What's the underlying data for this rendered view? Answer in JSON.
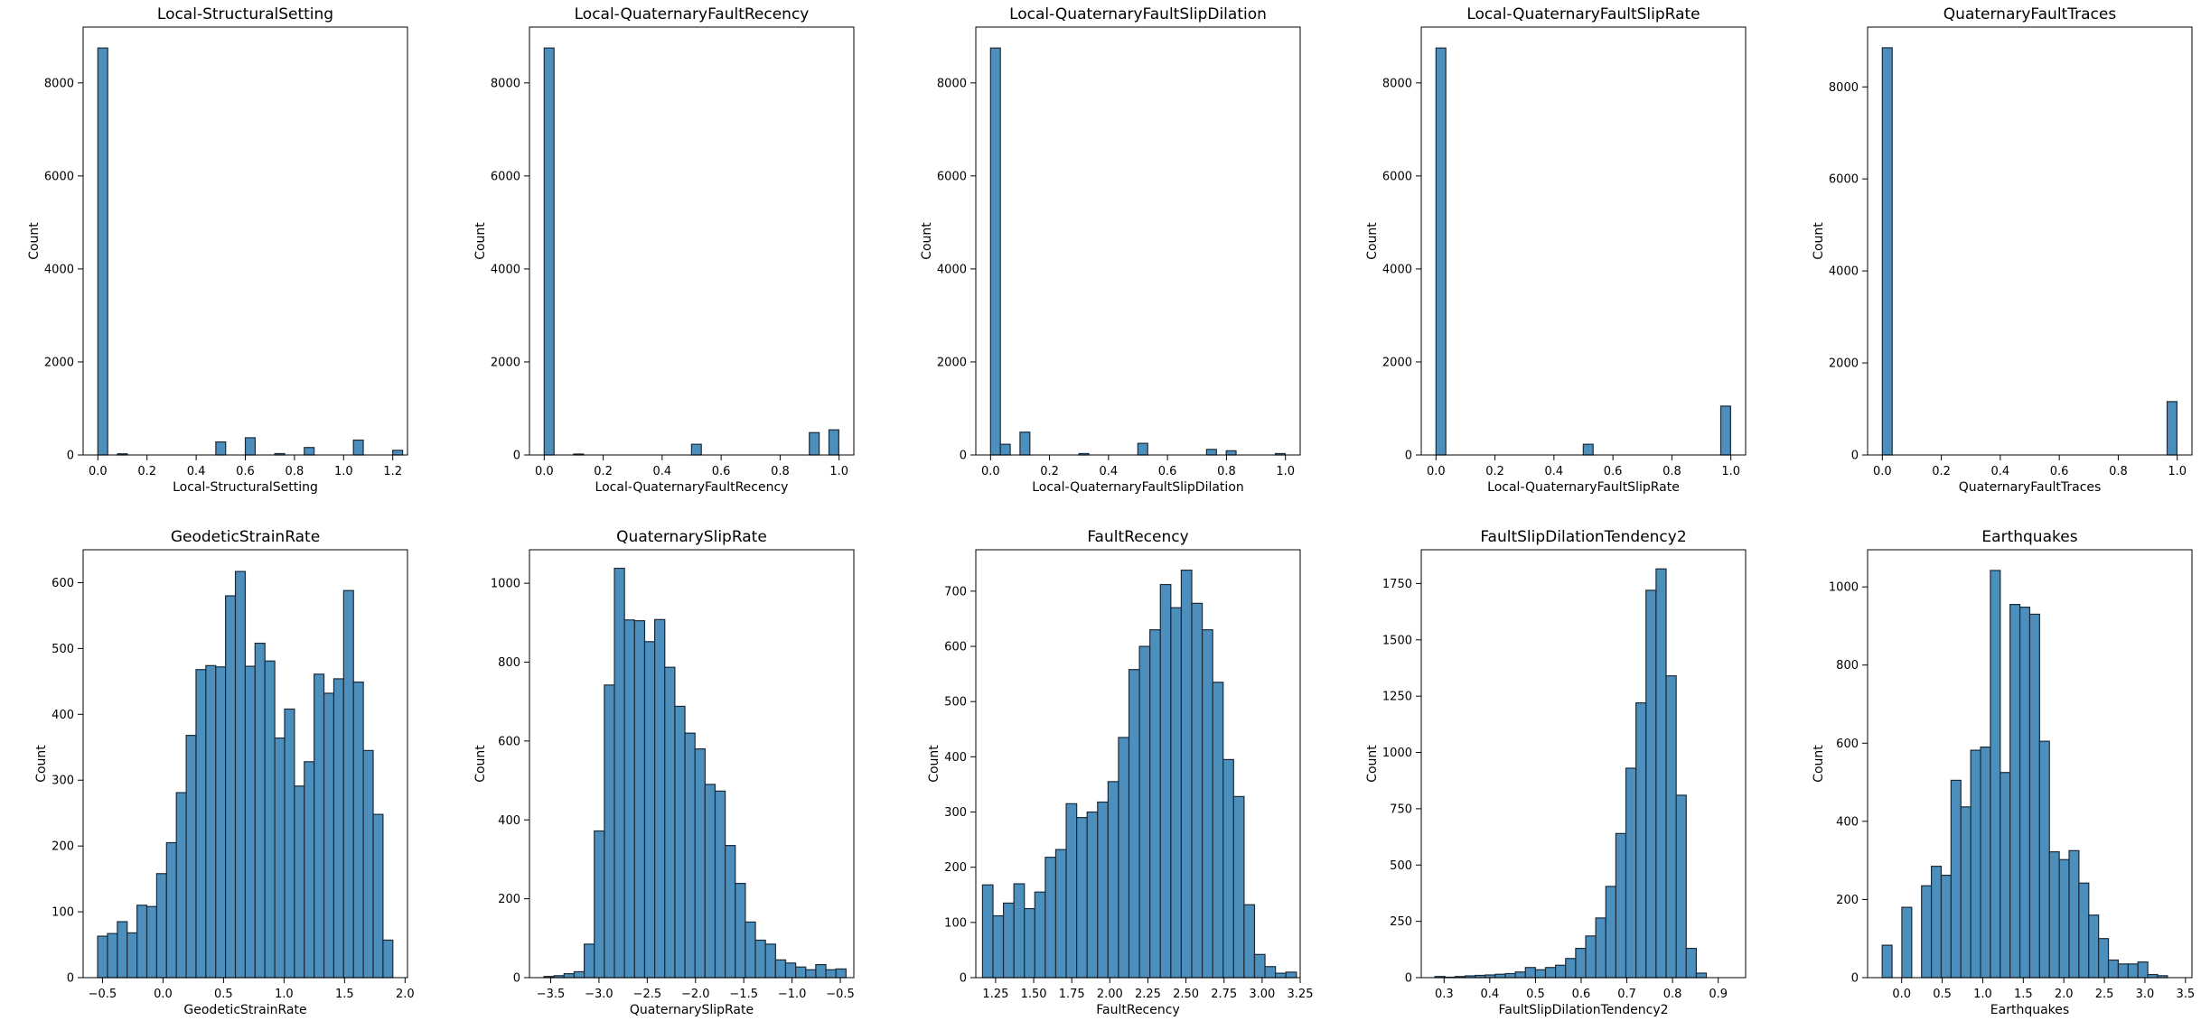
{
  "chart_data": [
    {
      "type": "bar",
      "title": "Local-StructuralSetting",
      "xlabel": "Local-StructuralSetting",
      "ylabel": "Count",
      "xlim": [
        -0.06,
        1.26
      ],
      "ylim": [
        0,
        9200
      ],
      "xticks": [
        0.0,
        0.2,
        0.4,
        0.6,
        0.8,
        1.0,
        1.2
      ],
      "xtick_labels": [
        "0.0",
        "0.2",
        "0.4",
        "0.6",
        "0.8",
        "1.0",
        "1.2"
      ],
      "yticks": [
        0,
        2000,
        4000,
        6000,
        8000
      ],
      "ytick_labels": [
        "0",
        "2000",
        "4000",
        "6000",
        "8000"
      ],
      "bin_start": 0.0,
      "bin_width": 0.04,
      "counts": [
        8750,
        0,
        25,
        0,
        0,
        0,
        0,
        0,
        0,
        0,
        0,
        0,
        280,
        0,
        0,
        370,
        0,
        0,
        30,
        0,
        0,
        160,
        0,
        0,
        0,
        0,
        320,
        0,
        0,
        0,
        100
      ]
    },
    {
      "type": "bar",
      "title": "Local-QuaternaryFaultRecency",
      "xlabel": "Local-QuaternaryFaultRecency",
      "ylabel": "Count",
      "xlim": [
        -0.05,
        1.05
      ],
      "ylim": [
        0,
        9200
      ],
      "xticks": [
        0.0,
        0.2,
        0.4,
        0.6,
        0.8,
        1.0
      ],
      "xtick_labels": [
        "0.0",
        "0.2",
        "0.4",
        "0.6",
        "0.8",
        "1.0"
      ],
      "yticks": [
        0,
        2000,
        4000,
        6000,
        8000
      ],
      "ytick_labels": [
        "0",
        "2000",
        "4000",
        "6000",
        "8000"
      ],
      "bin_start": 0.0,
      "bin_width": 0.0333,
      "counts": [
        8750,
        0,
        0,
        20,
        0,
        0,
        0,
        0,
        0,
        0,
        0,
        0,
        0,
        0,
        0,
        230,
        0,
        0,
        0,
        0,
        0,
        0,
        0,
        0,
        0,
        0,
        0,
        480,
        0,
        540
      ]
    },
    {
      "type": "bar",
      "title": "Local-QuaternaryFaultSlipDilation",
      "xlabel": "Local-QuaternaryFaultSlipDilation",
      "ylabel": "Count",
      "xlim": [
        -0.05,
        1.05
      ],
      "ylim": [
        0,
        9200
      ],
      "xticks": [
        0.0,
        0.2,
        0.4,
        0.6,
        0.8,
        1.0
      ],
      "xtick_labels": [
        "0.0",
        "0.2",
        "0.4",
        "0.6",
        "0.8",
        "1.0"
      ],
      "yticks": [
        0,
        2000,
        4000,
        6000,
        8000
      ],
      "ytick_labels": [
        "0",
        "2000",
        "4000",
        "6000",
        "8000"
      ],
      "bin_start": 0.0,
      "bin_width": 0.0333,
      "counts": [
        8750,
        230,
        0,
        490,
        0,
        0,
        0,
        0,
        0,
        30,
        0,
        0,
        0,
        0,
        0,
        250,
        0,
        0,
        0,
        0,
        0,
        0,
        120,
        0,
        90,
        0,
        0,
        0,
        0,
        30
      ]
    },
    {
      "type": "bar",
      "title": "Local-QuaternaryFaultSlipRate",
      "xlabel": "Local-QuaternaryFaultSlipRate",
      "ylabel": "Count",
      "xlim": [
        -0.05,
        1.05
      ],
      "ylim": [
        0,
        9200
      ],
      "xticks": [
        0.0,
        0.2,
        0.4,
        0.6,
        0.8,
        1.0
      ],
      "xtick_labels": [
        "0.0",
        "0.2",
        "0.4",
        "0.6",
        "0.8",
        "1.0"
      ],
      "yticks": [
        0,
        2000,
        4000,
        6000,
        8000
      ],
      "ytick_labels": [
        "0",
        "2000",
        "4000",
        "6000",
        "8000"
      ],
      "bin_start": 0.0,
      "bin_width": 0.0333,
      "counts": [
        8750,
        0,
        0,
        0,
        0,
        0,
        0,
        0,
        0,
        0,
        0,
        0,
        0,
        0,
        0,
        230,
        0,
        0,
        0,
        0,
        0,
        0,
        0,
        0,
        0,
        0,
        0,
        0,
        0,
        1050
      ]
    },
    {
      "type": "bar",
      "title": "QuaternaryFaultTraces",
      "xlabel": "QuaternaryFaultTraces",
      "ylabel": "Count",
      "xlim": [
        -0.05,
        1.05
      ],
      "ylim": [
        0,
        9300
      ],
      "xticks": [
        0.0,
        0.2,
        0.4,
        0.6,
        0.8,
        1.0
      ],
      "xtick_labels": [
        "0.0",
        "0.2",
        "0.4",
        "0.6",
        "0.8",
        "1.0"
      ],
      "yticks": [
        0,
        2000,
        4000,
        6000,
        8000
      ],
      "ytick_labels": [
        "0",
        "2000",
        "4000",
        "6000",
        "8000"
      ],
      "bin_start": 0.0,
      "bin_width": 0.0333,
      "counts": [
        8850,
        0,
        0,
        0,
        0,
        0,
        0,
        0,
        0,
        0,
        0,
        0,
        0,
        0,
        0,
        0,
        0,
        0,
        0,
        0,
        0,
        0,
        0,
        0,
        0,
        0,
        0,
        0,
        0,
        1160
      ]
    },
    {
      "type": "bar",
      "title": "GeodeticStrainRate",
      "xlabel": "GeodeticStrainRate",
      "ylabel": "Count",
      "xlim": [
        -0.66,
        2.02
      ],
      "ylim": [
        0,
        650
      ],
      "xticks": [
        -0.5,
        0.0,
        0.5,
        1.0,
        1.5,
        2.0
      ],
      "xtick_labels": [
        "−0.5",
        "0.0",
        "0.5",
        "1.0",
        "1.5",
        "2.0"
      ],
      "yticks": [
        0,
        100,
        200,
        300,
        400,
        500,
        600
      ],
      "ytick_labels": [
        "0",
        "100",
        "200",
        "300",
        "400",
        "500",
        "600"
      ],
      "bin_start": -0.54,
      "bin_width": 0.0813,
      "counts": [
        63,
        67,
        85,
        68,
        110,
        108,
        158,
        205,
        281,
        368,
        468,
        474,
        472,
        580,
        617,
        473,
        508,
        481,
        364,
        408,
        291,
        328,
        461,
        432,
        454,
        588,
        449,
        345,
        248,
        57
      ]
    },
    {
      "type": "bar",
      "title": "QuaternarySlipRate",
      "xlabel": "QuaternarySlipRate",
      "ylabel": "Count",
      "xlim": [
        -3.72,
        -0.36
      ],
      "ylim": [
        0,
        1085
      ],
      "xticks": [
        -3.5,
        -3.0,
        -2.5,
        -2.0,
        -1.5,
        -1.0,
        -0.5
      ],
      "xtick_labels": [
        "−3.5",
        "−3.0",
        "−2.5",
        "−2.0",
        "−1.5",
        "−1.0",
        "−0.5"
      ],
      "yticks": [
        0,
        200,
        400,
        600,
        800,
        1000
      ],
      "ytick_labels": [
        "0",
        "200",
        "400",
        "600",
        "800",
        "1000"
      ],
      "bin_start": -3.57,
      "bin_width": 0.1043,
      "counts": [
        3,
        5,
        10,
        15,
        85,
        372,
        742,
        1038,
        907,
        905,
        852,
        908,
        787,
        688,
        620,
        580,
        490,
        473,
        335,
        239,
        141,
        95,
        85,
        45,
        37,
        27,
        20,
        33,
        20,
        22
      ]
    },
    {
      "type": "bar",
      "title": "FaultRecency",
      "xlabel": "FaultRecency",
      "ylabel": "Count",
      "xlim": [
        1.12,
        3.25
      ],
      "ylim": [
        0,
        775
      ],
      "xticks": [
        1.25,
        1.5,
        1.75,
        2.0,
        2.25,
        2.5,
        2.75,
        3.0,
        3.25
      ],
      "xtick_labels": [
        "1.25",
        "1.50",
        "1.75",
        "2.00",
        "2.25",
        "2.50",
        "2.75",
        "3.00",
        "3.25"
      ],
      "yticks": [
        0,
        100,
        200,
        300,
        400,
        500,
        600,
        700
      ],
      "ytick_labels": [
        "0",
        "100",
        "200",
        "300",
        "400",
        "500",
        "600",
        "700"
      ],
      "bin_start": 1.164,
      "bin_width": 0.0687,
      "counts": [
        168,
        112,
        135,
        170,
        125,
        155,
        218,
        232,
        315,
        290,
        300,
        318,
        355,
        435,
        558,
        600,
        630,
        712,
        670,
        738,
        678,
        630,
        535,
        395,
        328,
        132,
        42,
        20,
        8,
        10
      ]
    },
    {
      "type": "bar",
      "title": "FaultSlipDilationTendency2",
      "xlabel": "FaultSlipDilationTendency2",
      "ylabel": "Count",
      "xlim": [
        0.25,
        0.96
      ],
      "ylim": [
        0,
        1900
      ],
      "xticks": [
        0.3,
        0.4,
        0.5,
        0.6,
        0.7,
        0.8,
        0.9
      ],
      "xtick_labels": [
        "0.3",
        "0.4",
        "0.5",
        "0.6",
        "0.7",
        "0.8",
        "0.9"
      ],
      "yticks": [
        0,
        250,
        500,
        750,
        1000,
        1250,
        1500,
        1750
      ],
      "ytick_labels": [
        "0",
        "250",
        "500",
        "750",
        "1000",
        "1250",
        "1500",
        "1750"
      ],
      "bin_start": 0.28,
      "bin_width": 0.022,
      "counts": [
        5,
        2,
        5,
        8,
        10,
        12,
        15,
        18,
        25,
        45,
        35,
        45,
        55,
        85,
        130,
        185,
        265,
        405,
        640,
        930,
        1220,
        1720,
        1815,
        1340,
        810,
        130,
        20
      ]
    },
    {
      "type": "bar",
      "title": "Earthquakes",
      "xlabel": "Earthquakes",
      "ylabel": "Count",
      "xlim": [
        -0.42,
        3.58
      ],
      "ylim": [
        0,
        1095
      ],
      "xticks": [
        0.0,
        0.5,
        1.0,
        1.5,
        2.0,
        2.5,
        3.0,
        3.5
      ],
      "xtick_labels": [
        "0.0",
        "0.5",
        "1.0",
        "1.5",
        "2.0",
        "2.5",
        "3.0",
        "3.5"
      ],
      "yticks": [
        0,
        200,
        400,
        600,
        800,
        1000
      ],
      "ytick_labels": [
        "0",
        "200",
        "400",
        "600",
        "800",
        "1000"
      ],
      "bin_start": -0.24,
      "bin_width": 0.1213,
      "counts": [
        83,
        0,
        180,
        0,
        235,
        285,
        262,
        505,
        437,
        582,
        590,
        1042,
        525,
        955,
        948,
        930,
        605,
        322,
        302,
        325,
        242,
        160,
        100,
        45,
        35,
        35,
        40,
        8,
        5
      ]
    }
  ]
}
